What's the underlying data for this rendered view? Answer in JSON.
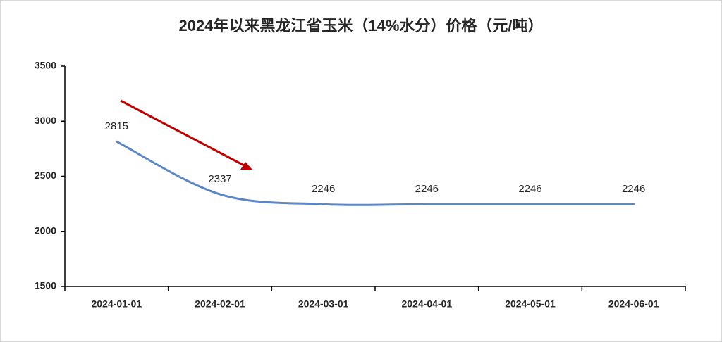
{
  "chart_data": {
    "type": "line",
    "title": "2024年以来黑龙江省玉米（14%水分）价格（元/吨）",
    "categories": [
      "2024-01-01",
      "2024-02-01",
      "2024-03-01",
      "2024-04-01",
      "2024-05-01",
      "2024-06-01"
    ],
    "values": [
      2815,
      2337,
      2246,
      2246,
      2246,
      2246
    ],
    "color": "#5b87c5",
    "ylim": [
      1500,
      3500
    ],
    "yticks": [
      1500,
      2000,
      2500,
      3000,
      3500
    ],
    "smooth": true
  }
}
